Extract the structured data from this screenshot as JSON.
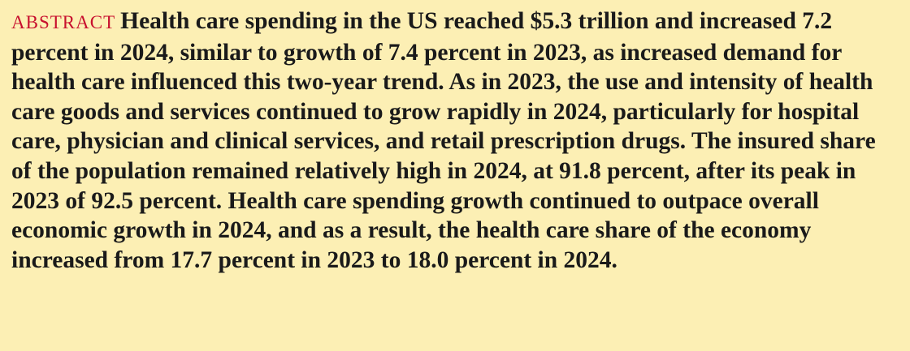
{
  "abstract": {
    "label": "ABSTRACT",
    "text": "Health care spending in the US reached $5.3 trillion and increased 7.2 percent in 2024, similar to growth of 7.4 percent in 2023, as increased demand for health care influenced this two-year trend. As in 2023, the use and intensity of health care goods and services continued to grow rapidly in 2024, particularly for hospital care, physician and clinical services, and retail prescription drugs. The insured share of the population remained relatively high in 2024, at 91.8 percent, after its peak in 2023 of 92.5 percent. Health care spending growth continued to outpace overall economic growth in 2024, and as a result, the health care share of the economy increased from 17.7 percent in 2023 to 18.0 percent in 2024."
  }
}
